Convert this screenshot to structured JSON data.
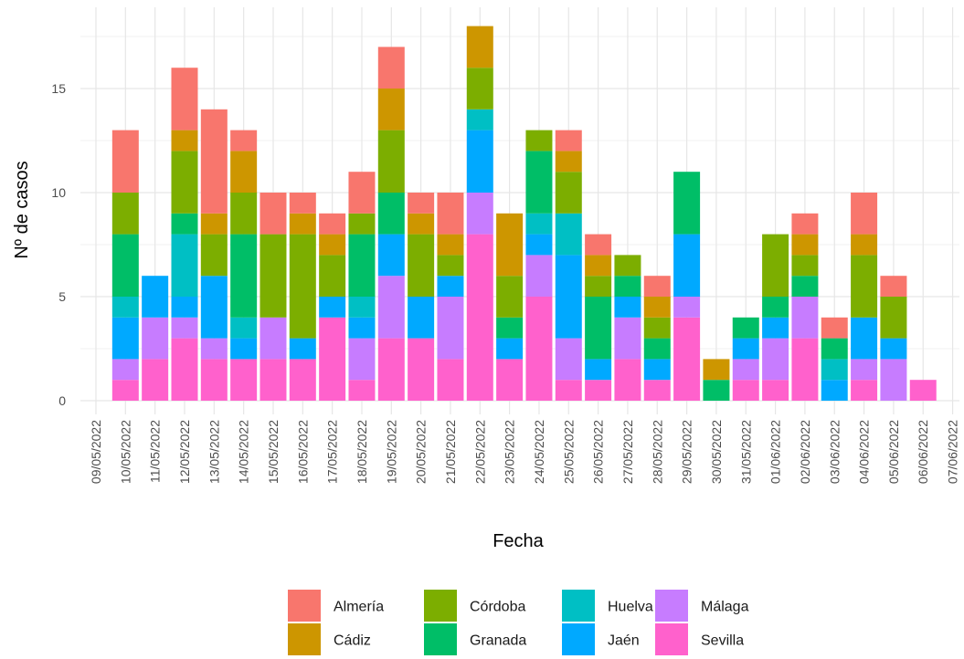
{
  "chart_data": {
    "type": "bar",
    "stacked": true,
    "xlabel": "Fecha",
    "ylabel": "Nº de casos",
    "ylim": [
      0,
      18.5
    ],
    "yticks": [
      0,
      5,
      10,
      15
    ],
    "grid": true,
    "legend_position": "bottom",
    "categories": [
      "09/05/2022",
      "10/05/2022",
      "11/05/2022",
      "12/05/2022",
      "13/05/2022",
      "14/05/2022",
      "15/05/2022",
      "16/05/2022",
      "17/05/2022",
      "18/05/2022",
      "19/05/2022",
      "20/05/2022",
      "21/05/2022",
      "22/05/2022",
      "23/05/2022",
      "24/05/2022",
      "25/05/2022",
      "26/05/2022",
      "27/05/2022",
      "28/05/2022",
      "29/05/2022",
      "30/05/2022",
      "31/05/2022",
      "01/06/2022",
      "02/06/2022",
      "03/06/2022",
      "04/06/2022",
      "05/06/2022",
      "06/06/2022",
      "07/06/2022"
    ],
    "series": [
      {
        "name": "Almería",
        "color": "#F8766D",
        "values": [
          0,
          3,
          0,
          3,
          5,
          1,
          2,
          1,
          1,
          2,
          2,
          1,
          2,
          0,
          0,
          0,
          1,
          1,
          0,
          1,
          0,
          0,
          0,
          0,
          1,
          1,
          2,
          1,
          0,
          0
        ]
      },
      {
        "name": "Cádiz",
        "color": "#CD9600",
        "values": [
          0,
          0,
          0,
          1,
          1,
          2,
          0,
          1,
          1,
          0,
          2,
          1,
          1,
          2,
          3,
          0,
          1,
          1,
          0,
          1,
          0,
          1,
          0,
          0,
          1,
          0,
          1,
          0,
          0,
          0
        ]
      },
      {
        "name": "Córdoba",
        "color": "#7CAE00",
        "values": [
          0,
          2,
          0,
          3,
          2,
          2,
          4,
          5,
          2,
          1,
          3,
          3,
          1,
          2,
          2,
          1,
          2,
          1,
          1,
          1,
          0,
          0,
          0,
          3,
          1,
          0,
          3,
          2,
          0,
          0
        ]
      },
      {
        "name": "Granada",
        "color": "#00BE67",
        "values": [
          0,
          3,
          0,
          1,
          0,
          4,
          0,
          0,
          0,
          3,
          2,
          0,
          0,
          0,
          1,
          3,
          0,
          3,
          1,
          1,
          3,
          1,
          1,
          1,
          1,
          1,
          0,
          0,
          0,
          0
        ]
      },
      {
        "name": "Huelva",
        "color": "#00BFC4",
        "values": [
          0,
          1,
          0,
          3,
          0,
          1,
          0,
          0,
          0,
          1,
          0,
          0,
          0,
          1,
          0,
          1,
          2,
          0,
          0,
          0,
          0,
          0,
          0,
          0,
          0,
          1,
          0,
          0,
          0,
          0
        ]
      },
      {
        "name": "Jaén",
        "color": "#00A9FF",
        "values": [
          0,
          2,
          2,
          1,
          3,
          1,
          0,
          1,
          1,
          1,
          2,
          2,
          1,
          3,
          1,
          1,
          4,
          1,
          1,
          1,
          3,
          0,
          1,
          1,
          0,
          1,
          2,
          1,
          0,
          0
        ]
      },
      {
        "name": "Málaga",
        "color": "#C77CFF",
        "values": [
          0,
          1,
          2,
          1,
          1,
          0,
          2,
          0,
          0,
          2,
          3,
          0,
          3,
          2,
          0,
          2,
          2,
          0,
          2,
          0,
          1,
          0,
          1,
          2,
          2,
          0,
          1,
          2,
          0,
          0
        ]
      },
      {
        "name": "Sevilla",
        "color": "#FF61CC",
        "values": [
          0,
          1,
          2,
          3,
          2,
          2,
          2,
          2,
          4,
          1,
          3,
          3,
          2,
          8,
          2,
          5,
          1,
          1,
          2,
          1,
          4,
          0,
          1,
          1,
          3,
          0,
          1,
          0,
          1,
          0
        ]
      }
    ]
  },
  "legend": {
    "items": [
      {
        "label": "Almería",
        "color": "#F8766D"
      },
      {
        "label": "Cádiz",
        "color": "#CD9600"
      },
      {
        "label": "Córdoba",
        "color": "#7CAE00"
      },
      {
        "label": "Granada",
        "color": "#00BE67"
      },
      {
        "label": "Huelva",
        "color": "#00BFC4"
      },
      {
        "label": "Jaén",
        "color": "#00A9FF"
      },
      {
        "label": "Málaga",
        "color": "#C77CFF"
      },
      {
        "label": "Sevilla",
        "color": "#FF61CC"
      }
    ]
  }
}
